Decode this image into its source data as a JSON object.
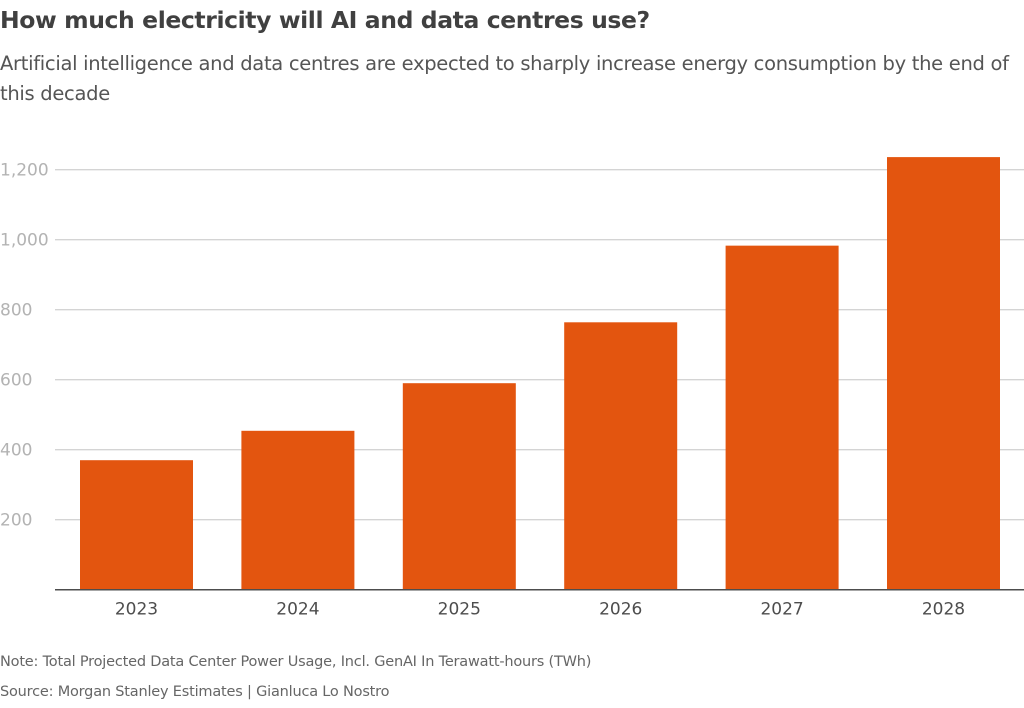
{
  "header": {
    "title": "How much electricity will AI and data centres use?",
    "subtitle": "Artificial intelligence and data centres are expected to sharply increase energy consumption by the end of this decade"
  },
  "footer": {
    "note": "Note: Total Projected Data Center Power Usage, Incl. GenAI In Terawatt-hours (TWh)",
    "source": "Source: Morgan Stanley Estimates | Gianluca Lo Nostro"
  },
  "colors": {
    "bar": "#e3550f",
    "grid": "#d4d4d4",
    "axis": "#4d4d4d"
  },
  "chart_data": {
    "type": "bar",
    "title": "How much electricity will AI and data centres use?",
    "subtitle": "Artificial intelligence and data centres are expected to sharply increase energy consumption by the end of this decade",
    "xlabel": "",
    "ylabel": "TWh",
    "categories": [
      "2023",
      "2024",
      "2025",
      "2026",
      "2027",
      "2028"
    ],
    "values": [
      370,
      454,
      590,
      764,
      983,
      1236
    ],
    "ylim": [
      0,
      1260
    ],
    "yticks": [
      200,
      400,
      600,
      800,
      1000,
      1200
    ],
    "ytick_labels": [
      "200",
      "400",
      "600",
      "800",
      "1,000",
      "1,200"
    ],
    "grid": true,
    "legend": "none"
  }
}
